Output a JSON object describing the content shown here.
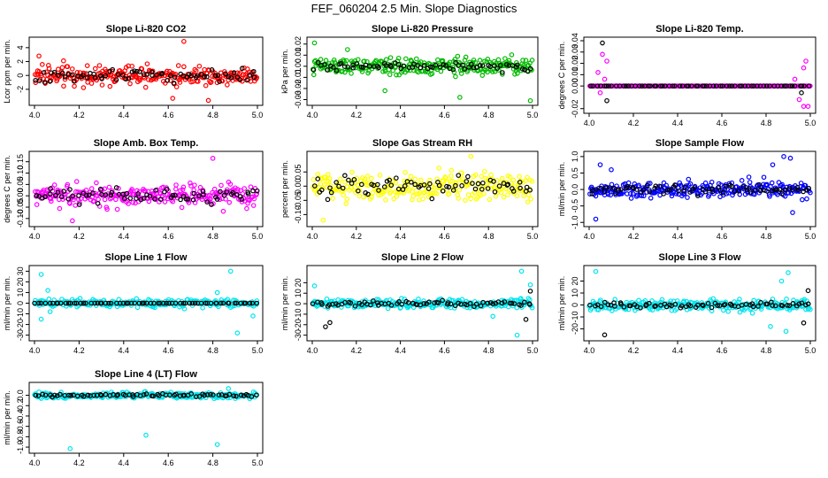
{
  "title": "FEF_060204  2.5 Min. Slope Diagnostics",
  "chart_data": [
    {
      "type": "scatter",
      "title": "Slope Li-820 CO2",
      "ylabel": "Lcor ppm per min.",
      "xlim": [
        4.0,
        5.0
      ],
      "ylim": [
        -3.8,
        5.0
      ],
      "xticks": [
        "4.0",
        "4.2",
        "4.4",
        "4.6",
        "4.8",
        "5.0"
      ],
      "yticks": [
        "-2",
        "0",
        "2",
        "4"
      ],
      "ytick_values": [
        -2,
        0,
        2,
        4
      ],
      "series": [
        {
          "color": "#ff0000",
          "spread": 1.4,
          "outliers": [
            [
              4.67,
              4.9
            ],
            [
              4.78,
              -3.6
            ],
            [
              4.62,
              -3.3
            ],
            [
              4.02,
              2.8
            ]
          ]
        },
        {
          "color": "#000000",
          "spread": 0.9,
          "outliers": []
        }
      ]
    },
    {
      "type": "scatter",
      "title": "Slope Li-820 Pressure",
      "ylabel": "kPa per min.",
      "xlim": [
        4.0,
        5.0
      ],
      "ylim": [
        -0.032,
        0.023
      ],
      "xticks": [
        "4.0",
        "4.2",
        "4.4",
        "4.6",
        "4.8",
        "5.0"
      ],
      "yticks": [
        "-0.03",
        "-0.02",
        "-0.01",
        "0.00",
        "0.01",
        "0.02"
      ],
      "ytick_values": [
        -0.03,
        -0.02,
        -0.01,
        0.0,
        0.01,
        0.02
      ],
      "series": [
        {
          "color": "#00bb00",
          "spread": 0.007,
          "outliers": [
            [
              4.01,
              0.021
            ],
            [
              4.33,
              -0.022
            ],
            [
              4.67,
              -0.028
            ],
            [
              4.99,
              -0.031
            ],
            [
              4.16,
              0.015
            ]
          ]
        },
        {
          "color": "#000000",
          "spread": 0.004,
          "outliers": []
        }
      ]
    },
    {
      "type": "scatter",
      "title": "Slope Li-820 Temp.",
      "ylabel": "degrees C per min.",
      "xlim": [
        4.0,
        5.0
      ],
      "ylim": [
        -0.021,
        0.04
      ],
      "xticks": [
        "4.0",
        "4.2",
        "4.4",
        "4.6",
        "4.8",
        "5.0"
      ],
      "yticks": [
        "-0.02",
        "0.00",
        "0.01",
        "0.02",
        "0.03",
        "0.04"
      ],
      "ytick_values": [
        -0.02,
        0.0,
        0.01,
        0.02,
        0.03,
        0.04
      ],
      "series": [
        {
          "color": "#ff00ff",
          "spread": 0.0,
          "outliers": [
            [
              4.06,
              0.028
            ],
            [
              4.08,
              0.022
            ],
            [
              4.04,
              0.012
            ],
            [
              4.07,
              0.006
            ],
            [
              4.98,
              0.022
            ],
            [
              4.97,
              0.016
            ],
            [
              4.95,
              -0.012
            ],
            [
              4.97,
              -0.018
            ],
            [
              4.99,
              -0.018
            ],
            [
              4.93,
              0.006
            ],
            [
              4.05,
              -0.006
            ]
          ]
        },
        {
          "color": "#000000",
          "spread": 0.0,
          "outliers": [
            [
              4.06,
              0.038
            ],
            [
              4.08,
              -0.013
            ],
            [
              4.96,
              -0.006
            ]
          ]
        }
      ]
    },
    {
      "type": "scatter",
      "title": "Slope Amb. Box Temp.",
      "ylabel": "degrees C per min.",
      "xlim": [
        4.0,
        5.0
      ],
      "ylim": [
        -0.12,
        0.18
      ],
      "xticks": [
        "4.0",
        "4.2",
        "4.4",
        "4.6",
        "4.8",
        "5.0"
      ],
      "yticks": [
        "-0.10",
        "-0.05",
        "0.00",
        "0.05",
        "0.10",
        "0.15"
      ],
      "ytick_values": [
        -0.1,
        -0.05,
        0.0,
        0.05,
        0.1,
        0.15
      ],
      "series": [
        {
          "color": "#ff00ff",
          "spread": 0.045,
          "outliers": [
            [
              4.8,
              0.165
            ],
            [
              4.17,
              -0.11
            ]
          ]
        },
        {
          "color": "#000000",
          "spread": 0.03,
          "outliers": []
        }
      ]
    },
    {
      "type": "scatter",
      "title": "Slope Gas Stream RH",
      "ylabel": "percent per min.",
      "xlim": [
        4.0,
        5.0
      ],
      "ylim": [
        -0.13,
        0.11
      ],
      "xticks": [
        "4.0",
        "4.2",
        "4.4",
        "4.6",
        "4.8",
        "5.0"
      ],
      "yticks": [
        "-0.10",
        "-0.05",
        "0.00",
        "0.05"
      ],
      "ytick_values": [
        -0.1,
        -0.05,
        0.0,
        0.05
      ],
      "series": [
        {
          "color": "#ffff00",
          "spread": 0.05,
          "outliers": [
            [
              4.72,
              0.105
            ],
            [
              4.05,
              -0.12
            ]
          ]
        },
        {
          "color": "#000000",
          "spread": 0.035,
          "outliers": []
        }
      ]
    },
    {
      "type": "scatter",
      "title": "Slope Sample Flow",
      "ylabel": "ml/min per min.",
      "xlim": [
        4.0,
        5.0
      ],
      "ylim": [
        -1.02,
        1.05
      ],
      "xticks": [
        "4.0",
        "4.2",
        "4.4",
        "4.6",
        "4.8",
        "5.0"
      ],
      "yticks": [
        "-1.0",
        "-0.5",
        "0.0",
        "0.5",
        "1.0"
      ],
      "ytick_values": [
        -1.0,
        -0.5,
        0.0,
        0.5,
        1.0
      ],
      "series": [
        {
          "color": "#0000ff",
          "spread": 0.25,
          "outliers": [
            [
              4.88,
              1.0
            ],
            [
              4.91,
              0.95
            ],
            [
              4.83,
              0.75
            ],
            [
              4.05,
              0.75
            ],
            [
              4.03,
              -0.9
            ],
            [
              4.92,
              -0.7
            ],
            [
              4.1,
              0.6
            ]
          ]
        },
        {
          "color": "#000000",
          "spread": 0.15,
          "outliers": []
        }
      ]
    },
    {
      "type": "scatter",
      "title": "Slope Line 1 Flow",
      "ylabel": "ml/min per min.",
      "xlim": [
        4.0,
        5.0
      ],
      "ylim": [
        -32,
        32
      ],
      "xticks": [
        "4.0",
        "4.2",
        "4.4",
        "4.6",
        "4.8",
        "5.0"
      ],
      "yticks": [
        "-30",
        "-20",
        "-10",
        "0",
        "10",
        "20",
        "30"
      ],
      "ytick_values": [
        -30,
        -20,
        -10,
        0,
        10,
        20,
        30
      ],
      "series": [
        {
          "color": "#00e5ee",
          "spread": 3.5,
          "outliers": [
            [
              4.03,
              27
            ],
            [
              4.88,
              30
            ],
            [
              4.91,
              -28
            ],
            [
              4.07,
              -8
            ],
            [
              4.82,
              10
            ],
            [
              4.06,
              12
            ],
            [
              4.98,
              -12
            ],
            [
              4.03,
              -15
            ]
          ]
        },
        {
          "color": "#000000",
          "spread": 0.0,
          "outliers": []
        }
      ]
    },
    {
      "type": "scatter",
      "title": "Slope Line 2 Flow",
      "ylabel": "ml/min per min.",
      "xlim": [
        4.0,
        5.0
      ],
      "ylim": [
        -32,
        33
      ],
      "xticks": [
        "4.0",
        "4.2",
        "4.4",
        "4.6",
        "4.8",
        "5.0"
      ],
      "yticks": [
        "-30",
        "-20",
        "-10",
        "0",
        "10",
        "20"
      ],
      "ytick_values": [
        -30,
        -20,
        -10,
        0,
        10,
        20
      ],
      "series": [
        {
          "color": "#00e5ee",
          "spread": 4.0,
          "outliers": [
            [
              4.95,
              31
            ],
            [
              4.93,
              -30
            ],
            [
              4.01,
              17
            ],
            [
              4.82,
              -12
            ],
            [
              4.99,
              18
            ]
          ]
        },
        {
          "color": "#000000",
          "spread": 2.5,
          "outliers": [
            [
              4.06,
              -22
            ],
            [
              4.08,
              -18
            ],
            [
              4.99,
              12
            ],
            [
              4.97,
              -15
            ]
          ]
        }
      ]
    },
    {
      "type": "scatter",
      "title": "Slope Line 3 Flow",
      "ylabel": "ml/min per min.",
      "xlim": [
        4.0,
        5.0
      ],
      "ylim": [
        -27,
        30
      ],
      "xticks": [
        "4.0",
        "4.2",
        "4.4",
        "4.6",
        "4.8",
        "5.0"
      ],
      "yticks": [
        "-20",
        "-10",
        "0",
        "10",
        "20"
      ],
      "ytick_values": [
        -20,
        -10,
        0,
        10,
        20
      ],
      "series": [
        {
          "color": "#00e5ee",
          "spread": 4.5,
          "outliers": [
            [
              4.03,
              28
            ],
            [
              4.9,
              27
            ],
            [
              4.87,
              20
            ],
            [
              4.82,
              -18
            ],
            [
              4.89,
              -22
            ]
          ]
        },
        {
          "color": "#000000",
          "spread": 2.5,
          "outliers": [
            [
              4.07,
              -25
            ],
            [
              4.99,
              12
            ],
            [
              4.97,
              -15
            ]
          ]
        }
      ]
    },
    {
      "type": "scatter",
      "title": "Slope Line 4 (LT) Flow",
      "ylabel": "ml/min per min.",
      "xlim": [
        4.0,
        5.0
      ],
      "ylim": [
        -1.05,
        0.18
      ],
      "xticks": [
        "4.0",
        "4.2",
        "4.4",
        "4.6",
        "4.8",
        "5.0"
      ],
      "yticks": [
        "-1.0",
        "-0.8",
        "-0.6",
        "-0.4",
        "-0.2",
        "0.0"
      ],
      "ytick_values": [
        -1.0,
        -0.8,
        -0.6,
        -0.4,
        -0.2,
        0.0
      ],
      "series": [
        {
          "color": "#00e5ee",
          "spread": 0.06,
          "outliers": [
            [
              4.16,
              -1.03
            ],
            [
              4.5,
              -0.77
            ],
            [
              4.82,
              -0.95
            ],
            [
              4.87,
              0.13
            ]
          ]
        },
        {
          "color": "#000000",
          "spread": 0.03,
          "outliers": []
        }
      ]
    }
  ]
}
